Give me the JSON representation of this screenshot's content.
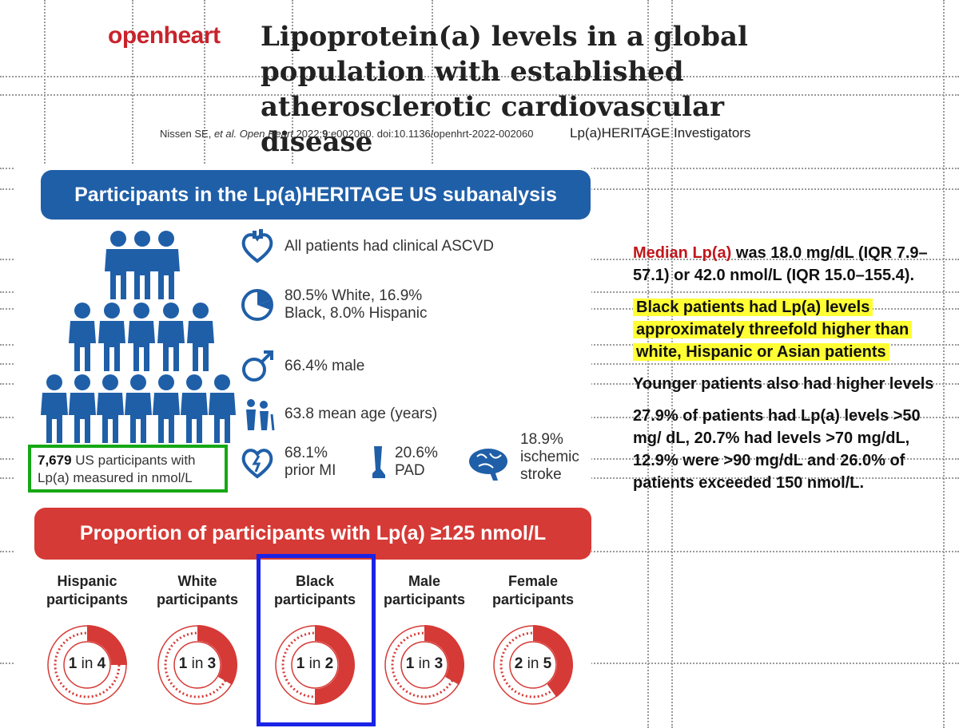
{
  "header": {
    "logo": "openheart",
    "title": "Lipoprotein(a) levels in a global population with established atherosclerotic cardiovascular disease",
    "citation_authors": "Nissen SE,",
    "citation_etal": "et al. Open Heart",
    "citation_year": "2022;",
    "citation_vol": "9",
    "citation_rest": ":e002060. doi:10.1136/openhrt-2022-002060",
    "investigators": "Lp(a)HERITAGE Investigators"
  },
  "infographic": {
    "banner_top": "Participants in the Lp(a)HERITAGE US subanalysis",
    "stats": [
      {
        "icon": "heart-icon",
        "text": "All patients had clinical ASCVD"
      },
      {
        "icon": "pie-chart-icon",
        "text": "80.5% White, 16.9% Black, 8.0% Hispanic"
      },
      {
        "icon": "male-symbol-icon",
        "text": "66.4% male"
      },
      {
        "icon": "elderly-people-icon",
        "text": "63.8 mean age (years)"
      }
    ],
    "mini_stats": [
      {
        "icon": "heart-attack-icon",
        "text": "68.1% prior MI"
      },
      {
        "icon": "leg-icon",
        "text": "20.6% PAD"
      },
      {
        "icon": "brain-icon",
        "text": "18.9% ischemic stroke"
      }
    ],
    "us_count_value": "7,679",
    "us_count_text": "US participants with Lp(a) measured in nmol/L",
    "banner_bottom": "Proportion of participants with Lp(a) ≥125 nmol/L",
    "groups": [
      {
        "label": "Hispanic participants",
        "n": "1",
        "sep": "in",
        "d": "4",
        "fraction": 0.25
      },
      {
        "label": "White participants",
        "n": "1",
        "sep": "in",
        "d": "3",
        "fraction": 0.333
      },
      {
        "label": "Black participants",
        "n": "1",
        "sep": "in",
        "d": "2",
        "fraction": 0.5
      },
      {
        "label": "Male participants",
        "n": "1",
        "sep": "in",
        "d": "3",
        "fraction": 0.333
      },
      {
        "label": "Female participants",
        "n": "2",
        "sep": "in",
        "d": "5",
        "fraction": 0.4
      }
    ]
  },
  "summary": {
    "p1_red": "Median Lp(a)",
    "p1_rest": " was 18.0 mg/dL (IQR 7.9–57.1) or 42.0 nmol/L (IQR 15.0–155.4).",
    "p2": "Black patients had Lp(a) levels approximately threefold higher than white, Hispanic or Asian patients",
    "p3": "Younger patients also had higher levels",
    "p4": "27.9% of patients had Lp(a) levels >50 mg/ dL, 20.7% had levels >70 mg/dL, 12.9% were >90 mg/dL and 26.0% of patients exceeded 150 nmol/L."
  },
  "colors": {
    "brand_red": "#c8232c",
    "banner_blue": "#1f5fa8",
    "banner_red": "#d63a36",
    "donut_red": "#d63a36",
    "highlight_yellow": "#ffff33",
    "box_green": "#14a814",
    "box_blue": "#1a23e6"
  }
}
